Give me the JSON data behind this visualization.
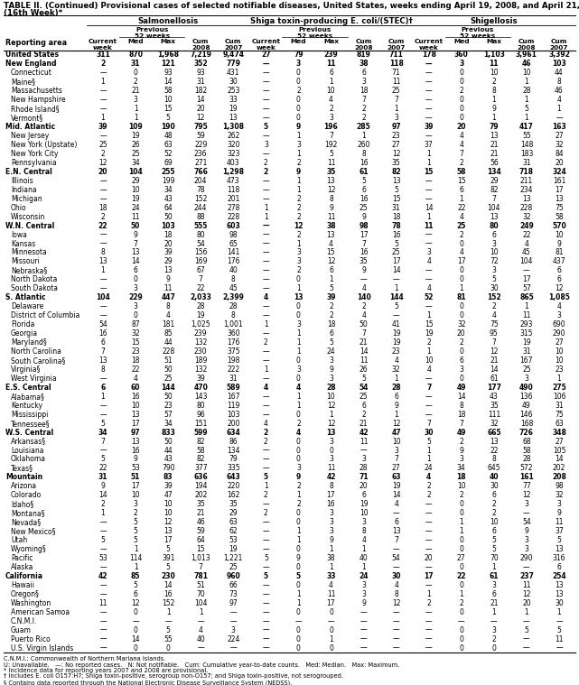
{
  "title1": "TABLE II. (Continued) Provisional cases of selected notifiable diseases, United States, weeks ending April 19, 2008, and April 21, 2007",
  "title2": "(16th Week)*",
  "rows": [
    [
      "United States",
      "311",
      "870",
      "1,968",
      "7,219",
      "9,474",
      "27",
      "79",
      "239",
      "819",
      "711",
      "178",
      "360",
      "1,103",
      "3,961",
      "3,392"
    ],
    [
      "New England",
      "2",
      "31",
      "121",
      "352",
      "779",
      "—",
      "3",
      "11",
      "38",
      "118",
      "—",
      "3",
      "11",
      "46",
      "103"
    ],
    [
      "Connecticut",
      "—",
      "0",
      "93",
      "93",
      "431",
      "—",
      "0",
      "6",
      "6",
      "71",
      "—",
      "0",
      "10",
      "10",
      "44"
    ],
    [
      "Maine§",
      "1",
      "2",
      "14",
      "31",
      "30",
      "—",
      "0",
      "1",
      "3",
      "11",
      "—",
      "0",
      "2",
      "1",
      "8"
    ],
    [
      "Massachusetts",
      "—",
      "21",
      "58",
      "182",
      "253",
      "—",
      "2",
      "10",
      "18",
      "25",
      "—",
      "2",
      "8",
      "28",
      "46"
    ],
    [
      "New Hampshire",
      "—",
      "3",
      "10",
      "14",
      "33",
      "—",
      "0",
      "4",
      "7",
      "7",
      "—",
      "0",
      "1",
      "1",
      "4"
    ],
    [
      "Rhode Island§",
      "—",
      "1",
      "15",
      "20",
      "19",
      "—",
      "0",
      "2",
      "2",
      "1",
      "—",
      "0",
      "9",
      "5",
      "1"
    ],
    [
      "Vermont§",
      "1",
      "1",
      "5",
      "12",
      "13",
      "—",
      "0",
      "3",
      "2",
      "3",
      "—",
      "0",
      "1",
      "1",
      "—"
    ],
    [
      "Mid. Atlantic",
      "39",
      "109",
      "190",
      "795",
      "1,308",
      "5",
      "9",
      "196",
      "285",
      "97",
      "39",
      "20",
      "79",
      "417",
      "163"
    ],
    [
      "New Jersey",
      "—",
      "19",
      "48",
      "59",
      "262",
      "—",
      "1",
      "7",
      "1",
      "23",
      "—",
      "4",
      "13",
      "55",
      "27"
    ],
    [
      "New York (Upstate)",
      "25",
      "26",
      "63",
      "229",
      "320",
      "3",
      "3",
      "192",
      "260",
      "27",
      "37",
      "4",
      "21",
      "148",
      "32"
    ],
    [
      "New York City",
      "2",
      "25",
      "52",
      "236",
      "323",
      "—",
      "1",
      "5",
      "8",
      "12",
      "1",
      "7",
      "21",
      "183",
      "84"
    ],
    [
      "Pennsylvania",
      "12",
      "34",
      "69",
      "271",
      "403",
      "2",
      "2",
      "11",
      "16",
      "35",
      "1",
      "2",
      "56",
      "31",
      "20"
    ],
    [
      "E.N. Central",
      "20",
      "104",
      "255",
      "766",
      "1,298",
      "2",
      "9",
      "35",
      "61",
      "82",
      "15",
      "58",
      "134",
      "718",
      "324"
    ],
    [
      "Illinois",
      "—",
      "29",
      "199",
      "204",
      "473",
      "—",
      "1",
      "13",
      "5",
      "13",
      "—",
      "15",
      "29",
      "211",
      "161"
    ],
    [
      "Indiana",
      "—",
      "10",
      "34",
      "78",
      "118",
      "—",
      "1",
      "12",
      "6",
      "5",
      "—",
      "6",
      "82",
      "234",
      "17"
    ],
    [
      "Michigan",
      "—",
      "19",
      "43",
      "152",
      "201",
      "—",
      "2",
      "8",
      "16",
      "15",
      "—",
      "1",
      "7",
      "13",
      "13"
    ],
    [
      "Ohio",
      "18",
      "24",
      "64",
      "244",
      "278",
      "1",
      "2",
      "9",
      "25",
      "31",
      "14",
      "22",
      "104",
      "228",
      "75"
    ],
    [
      "Wisconsin",
      "2",
      "11",
      "50",
      "88",
      "228",
      "1",
      "2",
      "11",
      "9",
      "18",
      "1",
      "4",
      "13",
      "32",
      "58"
    ],
    [
      "W.N. Central",
      "22",
      "50",
      "103",
      "555",
      "603",
      "—",
      "12",
      "38",
      "98",
      "78",
      "11",
      "25",
      "80",
      "249",
      "570"
    ],
    [
      "Iowa",
      "—",
      "9",
      "18",
      "80",
      "98",
      "—",
      "2",
      "13",
      "17",
      "16",
      "—",
      "2",
      "6",
      "22",
      "10"
    ],
    [
      "Kansas",
      "—",
      "7",
      "20",
      "54",
      "65",
      "—",
      "1",
      "4",
      "7",
      "5",
      "—",
      "0",
      "3",
      "4",
      "9"
    ],
    [
      "Minnesota",
      "8",
      "13",
      "39",
      "156",
      "141",
      "—",
      "3",
      "15",
      "16",
      "25",
      "3",
      "4",
      "10",
      "45",
      "81"
    ],
    [
      "Missouri",
      "13",
      "14",
      "29",
      "169",
      "176",
      "—",
      "3",
      "12",
      "35",
      "17",
      "4",
      "17",
      "72",
      "104",
      "437"
    ],
    [
      "Nebraska§",
      "1",
      "6",
      "13",
      "67",
      "40",
      "—",
      "2",
      "6",
      "9",
      "14",
      "—",
      "0",
      "3",
      "—",
      "6"
    ],
    [
      "North Dakota",
      "—",
      "0",
      "9",
      "7",
      "8",
      "—",
      "0",
      "1",
      "—",
      "—",
      "—",
      "0",
      "5",
      "17",
      "6"
    ],
    [
      "South Dakota",
      "—",
      "3",
      "11",
      "22",
      "45",
      "—",
      "1",
      "5",
      "4",
      "1",
      "4",
      "1",
      "30",
      "57",
      "12"
    ],
    [
      "S. Atlantic",
      "104",
      "229",
      "447",
      "2,033",
      "2,399",
      "4",
      "13",
      "39",
      "140",
      "144",
      "52",
      "81",
      "152",
      "865",
      "1,085"
    ],
    [
      "Delaware",
      "—",
      "3",
      "8",
      "28",
      "28",
      "—",
      "0",
      "2",
      "2",
      "5",
      "—",
      "0",
      "2",
      "1",
      "4"
    ],
    [
      "District of Columbia",
      "—",
      "0",
      "4",
      "19",
      "8",
      "—",
      "0",
      "2",
      "4",
      "—",
      "1",
      "0",
      "4",
      "11",
      "3"
    ],
    [
      "Florida",
      "54",
      "87",
      "181",
      "1,025",
      "1,001",
      "1",
      "3",
      "18",
      "50",
      "41",
      "15",
      "32",
      "75",
      "293",
      "690"
    ],
    [
      "Georgia",
      "16",
      "32",
      "85",
      "239",
      "360",
      "—",
      "1",
      "6",
      "7",
      "19",
      "19",
      "20",
      "95",
      "315",
      "290"
    ],
    [
      "Maryland§",
      "6",
      "15",
      "44",
      "132",
      "176",
      "2",
      "1",
      "5",
      "21",
      "19",
      "2",
      "2",
      "7",
      "19",
      "27"
    ],
    [
      "North Carolina",
      "7",
      "23",
      "228",
      "230",
      "375",
      "—",
      "1",
      "24",
      "14",
      "23",
      "1",
      "0",
      "12",
      "31",
      "10"
    ],
    [
      "South Carolina§",
      "13",
      "18",
      "51",
      "189",
      "198",
      "—",
      "0",
      "3",
      "11",
      "4",
      "10",
      "6",
      "21",
      "167",
      "10"
    ],
    [
      "Virginia§",
      "8",
      "22",
      "50",
      "132",
      "222",
      "1",
      "3",
      "9",
      "26",
      "32",
      "4",
      "3",
      "14",
      "25",
      "23"
    ],
    [
      "West Virginia",
      "—",
      "4",
      "25",
      "39",
      "31",
      "—",
      "0",
      "3",
      "5",
      "1",
      "—",
      "0",
      "61",
      "3",
      "1"
    ],
    [
      "E.S. Central",
      "6",
      "60",
      "144",
      "470",
      "589",
      "4",
      "4",
      "28",
      "54",
      "28",
      "7",
      "49",
      "177",
      "490",
      "275"
    ],
    [
      "Alabama§",
      "1",
      "16",
      "50",
      "143",
      "167",
      "—",
      "1",
      "10",
      "25",
      "6",
      "—",
      "14",
      "43",
      "136",
      "106"
    ],
    [
      "Kentucky",
      "—",
      "10",
      "23",
      "80",
      "119",
      "—",
      "1",
      "12",
      "6",
      "9",
      "—",
      "8",
      "35",
      "49",
      "31"
    ],
    [
      "Mississippi",
      "—",
      "13",
      "57",
      "96",
      "103",
      "—",
      "0",
      "1",
      "2",
      "1",
      "—",
      "18",
      "111",
      "146",
      "75"
    ],
    [
      "Tennessee§",
      "5",
      "17",
      "34",
      "151",
      "200",
      "4",
      "2",
      "12",
      "21",
      "12",
      "7",
      "7",
      "32",
      "168",
      "63"
    ],
    [
      "W.S. Central",
      "34",
      "97",
      "833",
      "599",
      "634",
      "2",
      "4",
      "13",
      "42",
      "47",
      "30",
      "49",
      "665",
      "726",
      "348"
    ],
    [
      "Arkansas§",
      "7",
      "13",
      "50",
      "82",
      "86",
      "2",
      "0",
      "3",
      "11",
      "10",
      "5",
      "2",
      "13",
      "68",
      "27"
    ],
    [
      "Louisiana",
      "—",
      "16",
      "44",
      "58",
      "134",
      "—",
      "0",
      "0",
      "—",
      "3",
      "1",
      "9",
      "22",
      "58",
      "105"
    ],
    [
      "Oklahoma",
      "5",
      "9",
      "43",
      "82",
      "79",
      "—",
      "0",
      "3",
      "3",
      "7",
      "1",
      "3",
      "8",
      "28",
      "14"
    ],
    [
      "Texas§",
      "22",
      "53",
      "790",
      "377",
      "335",
      "—",
      "3",
      "11",
      "28",
      "27",
      "24",
      "34",
      "645",
      "572",
      "202"
    ],
    [
      "Mountain",
      "31",
      "51",
      "83",
      "636",
      "643",
      "5",
      "9",
      "42",
      "71",
      "63",
      "4",
      "18",
      "40",
      "161",
      "208"
    ],
    [
      "Arizona",
      "9",
      "17",
      "39",
      "194",
      "220",
      "1",
      "2",
      "8",
      "20",
      "19",
      "2",
      "10",
      "30",
      "77",
      "98"
    ],
    [
      "Colorado",
      "14",
      "10",
      "47",
      "202",
      "162",
      "2",
      "1",
      "17",
      "6",
      "14",
      "2",
      "2",
      "6",
      "12",
      "32"
    ],
    [
      "Idaho§",
      "2",
      "3",
      "10",
      "35",
      "35",
      "—",
      "2",
      "16",
      "19",
      "4",
      "—",
      "0",
      "2",
      "3",
      "3"
    ],
    [
      "Montana§",
      "1",
      "2",
      "10",
      "21",
      "29",
      "2",
      "0",
      "3",
      "10",
      "—",
      "—",
      "0",
      "2",
      "—",
      "9"
    ],
    [
      "Nevada§",
      "—",
      "5",
      "12",
      "46",
      "63",
      "—",
      "0",
      "3",
      "3",
      "6",
      "—",
      "1",
      "10",
      "54",
      "11"
    ],
    [
      "New Mexico§",
      "—",
      "5",
      "13",
      "59",
      "62",
      "—",
      "1",
      "3",
      "8",
      "13",
      "—",
      "1",
      "6",
      "9",
      "37"
    ],
    [
      "Utah",
      "5",
      "5",
      "17",
      "64",
      "53",
      "—",
      "1",
      "9",
      "4",
      "7",
      "—",
      "0",
      "5",
      "3",
      "5"
    ],
    [
      "Wyoming§",
      "—",
      "1",
      "5",
      "15",
      "19",
      "—",
      "0",
      "1",
      "1",
      "—",
      "—",
      "0",
      "5",
      "3",
      "13"
    ],
    [
      "Pacific",
      "53",
      "114",
      "391",
      "1,013",
      "1,221",
      "5",
      "9",
      "38",
      "40",
      "54",
      "20",
      "27",
      "70",
      "290",
      "316"
    ],
    [
      "Alaska",
      "—",
      "1",
      "5",
      "7",
      "25",
      "—",
      "0",
      "1",
      "1",
      "—",
      "—",
      "0",
      "1",
      "—",
      "6"
    ],
    [
      "California",
      "42",
      "85",
      "230",
      "781",
      "960",
      "5",
      "5",
      "33",
      "24",
      "30",
      "17",
      "22",
      "61",
      "237",
      "254"
    ],
    [
      "Hawaii",
      "—",
      "5",
      "14",
      "51",
      "66",
      "—",
      "0",
      "4",
      "3",
      "4",
      "—",
      "0",
      "3",
      "11",
      "13"
    ],
    [
      "Oregon§",
      "—",
      "6",
      "16",
      "70",
      "73",
      "—",
      "1",
      "11",
      "3",
      "8",
      "1",
      "1",
      "6",
      "12",
      "13"
    ],
    [
      "Washington",
      "11",
      "12",
      "152",
      "104",
      "97",
      "—",
      "1",
      "17",
      "9",
      "12",
      "2",
      "2",
      "21",
      "20",
      "30"
    ],
    [
      "American Samoa",
      "—",
      "0",
      "1",
      "1",
      "—",
      "—",
      "0",
      "0",
      "—",
      "—",
      "—",
      "0",
      "1",
      "1",
      "1"
    ],
    [
      "C.N.M.I.",
      "—",
      "—",
      "—",
      "—",
      "—",
      "—",
      "—",
      "—",
      "—",
      "—",
      "—",
      "—",
      "—",
      "—",
      "—"
    ],
    [
      "Guam",
      "—",
      "0",
      "5",
      "4",
      "3",
      "—",
      "0",
      "0",
      "—",
      "—",
      "—",
      "0",
      "3",
      "5",
      "5"
    ],
    [
      "Puerto Rico",
      "—",
      "14",
      "55",
      "40",
      "224",
      "—",
      "0",
      "1",
      "—",
      "—",
      "—",
      "0",
      "2",
      "—",
      "11"
    ],
    [
      "U.S. Virgin Islands",
      "—",
      "0",
      "0",
      "—",
      "—",
      "—",
      "0",
      "0",
      "—",
      "—",
      "—",
      "0",
      "0",
      "—",
      "—"
    ]
  ],
  "bold_rows": [
    0,
    1,
    8,
    13,
    19,
    27,
    37,
    42,
    47,
    58
  ],
  "region_rows": [
    1,
    8,
    13,
    19,
    27,
    37,
    42,
    47,
    58
  ],
  "us_row": 0,
  "footnotes": [
    "C.N.M.I.: Commonwealth of Northern Mariana Islands.",
    "U: Unavailable.   —: No reported cases.   N: Not notifiable.   Cum: Cumulative year-to-date counts.   Med: Median.   Max: Maximum.",
    "* Incidence data for reporting years 2007 and 2008 are provisional.",
    "† Includes E. coli O157:H7; Shiga toxin-positive, serogroup non-O157; and Shiga toxin-positive, not serogrouped.",
    "§ Contains data reported through the National Electronic Disease Surveillance System (NEDSS)."
  ]
}
